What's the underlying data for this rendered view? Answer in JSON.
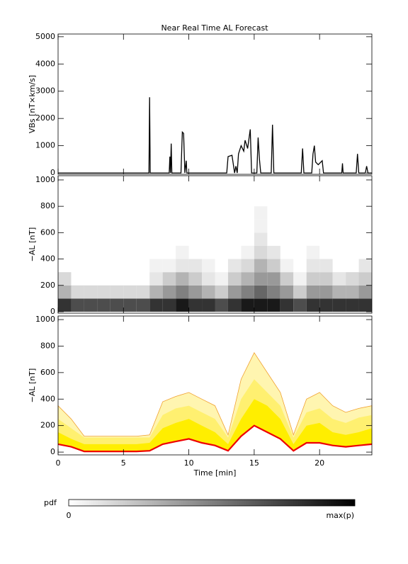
{
  "chart_data": [
    {
      "type": "line",
      "title": "Near Real Time AL Forecast",
      "ylabel": "VBs [nT×km/s]",
      "x": [
        0,
        6.95,
        7.0,
        7.05,
        8.5,
        8.55,
        8.6,
        8.65,
        8.7,
        9.4,
        9.5,
        9.6,
        9.7,
        9.8,
        9.85,
        12.9,
        13.0,
        13.3,
        13.5,
        13.6,
        13.7,
        13.8,
        14.0,
        14.2,
        14.3,
        14.5,
        14.7,
        14.8,
        15.2,
        15.3,
        15.4,
        15.5,
        16.3,
        16.4,
        16.5,
        18.6,
        18.7,
        18.8,
        19.4,
        19.5,
        19.6,
        19.7,
        19.9,
        20.2,
        20.3,
        21.7,
        21.75,
        21.8,
        22.8,
        22.9,
        23.0,
        23.5,
        23.6,
        23.7,
        24
      ],
      "series": [
        {
          "color": "#000000",
          "values": [
            0,
            0,
            2780,
            0,
            0,
            600,
            0,
            1080,
            0,
            0,
            1500,
            1450,
            0,
            450,
            0,
            0,
            600,
            650,
            0,
            250,
            0,
            700,
            1000,
            800,
            1200,
            900,
            1600,
            0,
            0,
            1300,
            500,
            0,
            0,
            1770,
            0,
            0,
            900,
            0,
            0,
            700,
            1000,
            400,
            300,
            450,
            0,
            0,
            350,
            0,
            0,
            700,
            0,
            0,
            250,
            0,
            0
          ]
        }
      ],
      "xlim": [
        0,
        24
      ],
      "xticks": [
        0,
        5,
        10,
        15,
        20
      ],
      "ylim": [
        -50,
        5100
      ],
      "yticks": [
        0,
        1000,
        2000,
        3000,
        4000,
        5000
      ]
    },
    {
      "type": "heatmap",
      "ylabel": "−AL [nT]",
      "x_bins": [
        0,
        1,
        2,
        3,
        4,
        5,
        6,
        7,
        8,
        9,
        10,
        11,
        12,
        13,
        14,
        15,
        16,
        17,
        18,
        19,
        20,
        21,
        22,
        23,
        24
      ],
      "y_bins": [
        0,
        100,
        200,
        300,
        400,
        500,
        600,
        700,
        800
      ],
      "pdf": [
        [
          0.8,
          0.3,
          0.15,
          0,
          0,
          0,
          0,
          0
        ],
        [
          0.7,
          0.15,
          0,
          0,
          0,
          0,
          0,
          0
        ],
        [
          0.7,
          0.15,
          0,
          0,
          0,
          0,
          0,
          0
        ],
        [
          0.7,
          0.15,
          0,
          0,
          0,
          0,
          0,
          0
        ],
        [
          0.7,
          0.15,
          0,
          0,
          0,
          0,
          0,
          0
        ],
        [
          0.7,
          0.15,
          0,
          0,
          0,
          0,
          0,
          0
        ],
        [
          0.7,
          0.15,
          0,
          0,
          0,
          0,
          0,
          0
        ],
        [
          0.8,
          0.3,
          0.1,
          0.05,
          0,
          0,
          0,
          0
        ],
        [
          0.8,
          0.4,
          0.2,
          0.05,
          0,
          0,
          0,
          0
        ],
        [
          0.9,
          0.5,
          0.3,
          0.1,
          0.05,
          0,
          0,
          0
        ],
        [
          0.8,
          0.4,
          0.2,
          0.1,
          0,
          0,
          0,
          0
        ],
        [
          0.8,
          0.3,
          0.1,
          0.05,
          0,
          0,
          0,
          0
        ],
        [
          0.7,
          0.2,
          0.05,
          0,
          0,
          0,
          0,
          0
        ],
        [
          0.8,
          0.4,
          0.2,
          0.1,
          0,
          0,
          0,
          0
        ],
        [
          0.9,
          0.5,
          0.3,
          0.15,
          0.05,
          0,
          0,
          0
        ],
        [
          0.9,
          0.6,
          0.4,
          0.3,
          0.15,
          0.1,
          0.05,
          0.05
        ],
        [
          0.9,
          0.5,
          0.4,
          0.2,
          0.1,
          0,
          0,
          0
        ],
        [
          0.8,
          0.4,
          0.2,
          0.05,
          0,
          0,
          0,
          0
        ],
        [
          0.7,
          0.2,
          0.05,
          0,
          0,
          0,
          0,
          0
        ],
        [
          0.8,
          0.4,
          0.2,
          0.1,
          0.05,
          0,
          0,
          0
        ],
        [
          0.8,
          0.4,
          0.2,
          0.1,
          0,
          0,
          0,
          0
        ],
        [
          0.8,
          0.3,
          0.1,
          0,
          0,
          0,
          0,
          0
        ],
        [
          0.8,
          0.3,
          0.15,
          0,
          0,
          0,
          0,
          0
        ],
        [
          0.8,
          0.4,
          0.2,
          0.1,
          0,
          0,
          0,
          0
        ]
      ],
      "colorbar": {
        "label": "pdf",
        "min_label": "0",
        "max_label": "max(p)"
      },
      "xlim": [
        0,
        24
      ],
      "xticks": [
        0,
        5,
        10,
        15,
        20
      ],
      "ylim": [
        -11,
        1032
      ],
      "yticks": [
        0,
        200,
        400,
        600,
        800,
        1000
      ]
    },
    {
      "type": "band",
      "ylabel": "−AL [nT]",
      "xlabel": "Time [min]",
      "x": [
        0,
        1,
        2,
        3,
        4,
        5,
        6,
        7,
        8,
        9,
        10,
        11,
        12,
        13,
        14,
        15,
        16,
        17,
        18,
        19,
        20,
        21,
        22,
        23,
        24
      ],
      "series": [
        {
          "color": "#fff5b0",
          "outline": "#f0a030",
          "values": [
            350,
            250,
            120,
            120,
            120,
            120,
            120,
            130,
            380,
            420,
            450,
            400,
            350,
            130,
            550,
            750,
            600,
            450,
            130,
            400,
            450,
            350,
            300,
            330,
            350
          ]
        },
        {
          "color": "#fff070",
          "values": [
            250,
            180,
            110,
            110,
            110,
            110,
            110,
            110,
            280,
            330,
            350,
            300,
            250,
            110,
            400,
            550,
            450,
            350,
            110,
            300,
            330,
            250,
            220,
            260,
            280
          ]
        },
        {
          "color": "#ffee00",
          "values": [
            150,
            100,
            60,
            60,
            60,
            60,
            60,
            70,
            180,
            220,
            250,
            200,
            150,
            60,
            250,
            400,
            350,
            250,
            60,
            200,
            220,
            150,
            130,
            150,
            180
          ]
        },
        {
          "color": "#ee0000",
          "values": [
            60,
            40,
            5,
            5,
            5,
            5,
            5,
            10,
            60,
            80,
            100,
            70,
            50,
            10,
            120,
            200,
            150,
            100,
            10,
            70,
            70,
            50,
            40,
            50,
            60
          ]
        }
      ],
      "xlim": [
        0,
        24
      ],
      "xticks": [
        0,
        5,
        10,
        15,
        20
      ],
      "ylim": [
        -21,
        1027
      ],
      "yticks": [
        0,
        200,
        400,
        600,
        800,
        1000
      ]
    }
  ]
}
